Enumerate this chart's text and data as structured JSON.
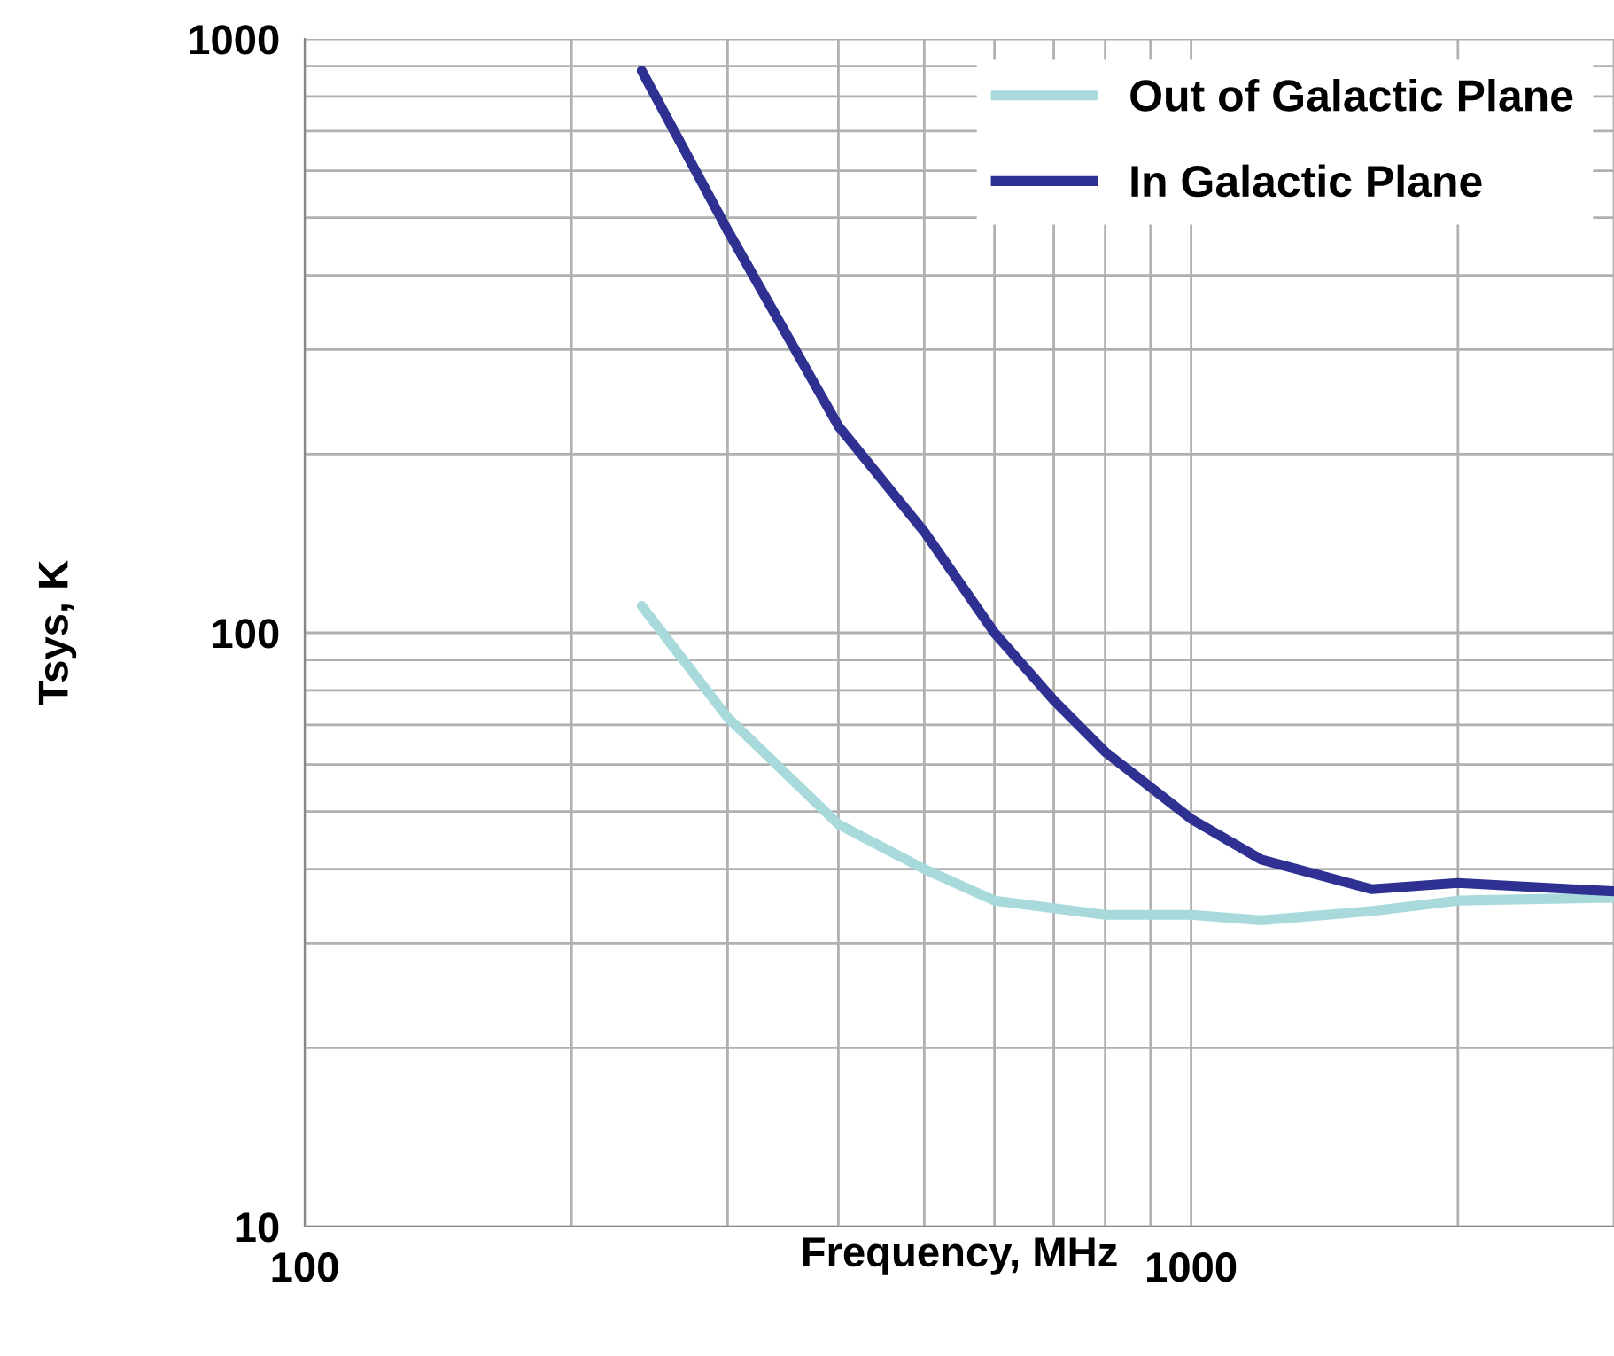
{
  "chart_data": {
    "type": "line",
    "xlabel": "Frequency, MHz",
    "ylabel": "Tsys, K",
    "log": "xy",
    "grid": true,
    "legend": "top right",
    "line_style": "solid",
    "marker": "none",
    "xlim": [
      100,
      3000
    ],
    "ylim": [
      10,
      1000
    ],
    "xticks": [
      100,
      {
        "value": 200,
        "label": null
      },
      {
        "value": 300,
        "label": null
      },
      {
        "value": 400,
        "label": null
      },
      {
        "value": 500,
        "label": null
      },
      {
        "value": 600,
        "label": null
      },
      {
        "value": 700,
        "label": null
      },
      {
        "value": 800,
        "label": null
      },
      {
        "value": 900,
        "label": null
      },
      1000,
      {
        "value": 2000,
        "label": null
      },
      {
        "value": 3000,
        "label": null
      }
    ],
    "yticks": [
      10,
      {
        "value": 20,
        "label": null
      },
      {
        "value": 30,
        "label": null
      },
      {
        "value": 40,
        "label": null
      },
      {
        "value": 50,
        "label": null
      },
      {
        "value": 60,
        "label": null
      },
      {
        "value": 70,
        "label": null
      },
      {
        "value": 80,
        "label": null
      },
      {
        "value": 90,
        "label": null
      },
      100,
      {
        "value": 200,
        "label": null
      },
      {
        "value": 300,
        "label": null
      },
      {
        "value": 400,
        "label": null
      },
      {
        "value": 500,
        "label": null
      },
      {
        "value": 600,
        "label": null
      },
      {
        "value": 700,
        "label": null
      },
      {
        "value": 800,
        "label": null
      },
      {
        "value": 900,
        "label": null
      },
      1000
    ],
    "series": [
      {
        "name": "Out of Galactic Plane",
        "color": "#a8dadc",
        "x": [
          240,
          300,
          400,
          500,
          600,
          800,
          1000,
          1200,
          1600,
          2000,
          3000
        ],
        "values": [
          111,
          72,
          47.6,
          40,
          35.4,
          33.5,
          33.5,
          32.8,
          34,
          35.4,
          35.8
        ]
      },
      {
        "name": "In Galactic Plane",
        "color": "#2e3192",
        "x": [
          240,
          300,
          400,
          500,
          600,
          700,
          800,
          1000,
          1200,
          1600,
          2000,
          3000
        ],
        "values": [
          884,
          476,
          223,
          148,
          100,
          77,
          63,
          48.6,
          41.5,
          37,
          37.9,
          36.7
        ]
      }
    ]
  }
}
